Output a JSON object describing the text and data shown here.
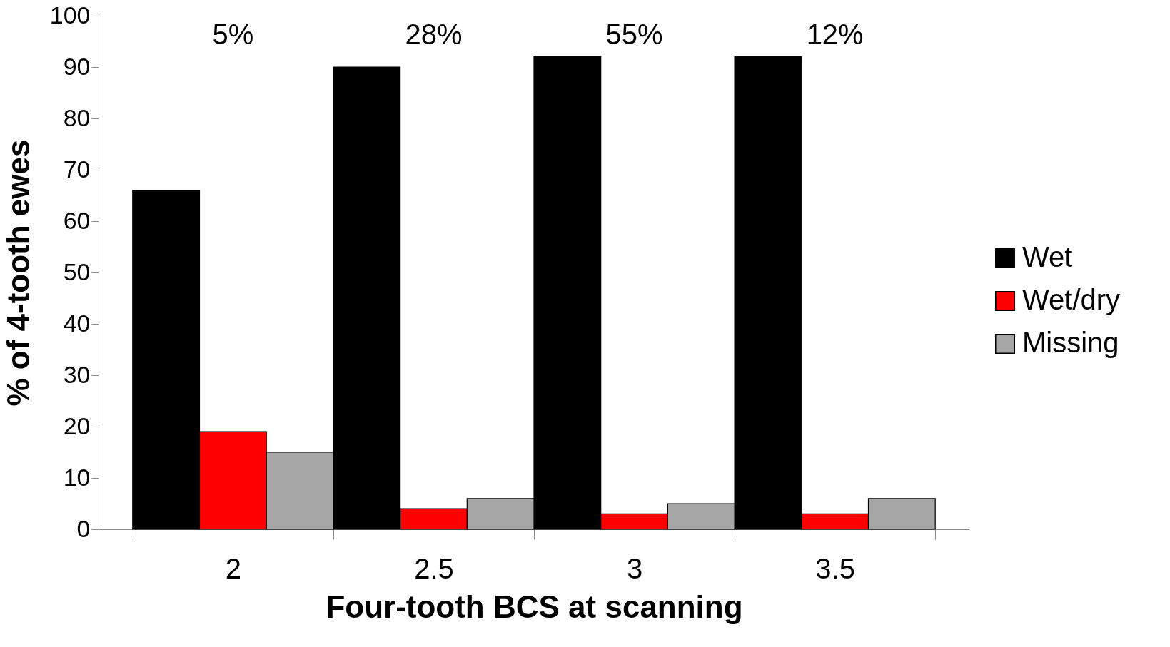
{
  "chart_data": {
    "type": "bar",
    "xlabel": "Four-tooth BCS at scanning",
    "ylabel": "% of 4-tooth ewes",
    "categories": [
      "2",
      "2.5",
      "3",
      "3.5"
    ],
    "series": [
      {
        "name": "Wet",
        "color": "#000000",
        "values": [
          66,
          90,
          92,
          92
        ]
      },
      {
        "name": "Wet/dry",
        "color": "#ff0000",
        "values": [
          19,
          4,
          3,
          3
        ]
      },
      {
        "name": "Missing",
        "color": "#a6a6a6",
        "values": [
          15,
          6,
          5,
          6
        ]
      }
    ],
    "annotations": [
      "5%",
      "28%",
      "55%",
      "12%"
    ],
    "ylim": [
      0,
      100
    ],
    "yticks": [
      0,
      10,
      20,
      30,
      40,
      50,
      60,
      70,
      80,
      90,
      100
    ],
    "grid": false,
    "legend": "right"
  }
}
